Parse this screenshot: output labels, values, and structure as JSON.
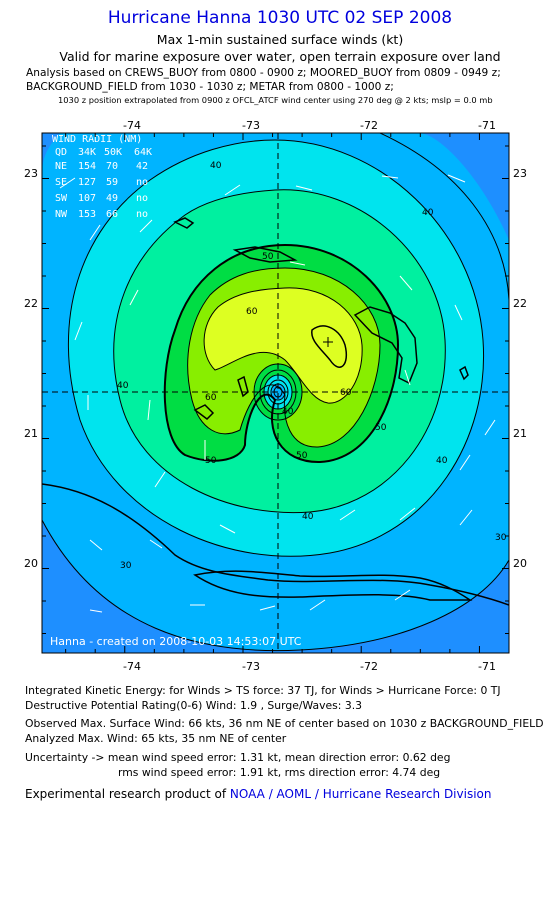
{
  "header": {
    "title": "Hurricane Hanna 1030 UTC 02 SEP 2008",
    "subtitle1": "Max 1-min sustained surface winds (kt)",
    "subtitle2": "Valid for marine exposure over water, open terrain exposure over land",
    "analysis_line1": "Analysis based on  CREWS_BUOY from 0800 - 0900 z;  MOORED_BUOY from 0809 - 0949 z;",
    "analysis_line2": "BACKGROUND_FIELD from 1030 - 1030 z;  METAR from 0800 - 1000 z;",
    "position_note": "1030 z position extrapolated from 0900 z OFCL_ATCF wind center using 270 deg @ 2 kts; mslp = 0.0 mb"
  },
  "map": {
    "lon_ticks": [
      "-74",
      "-73",
      "-72",
      "-71"
    ],
    "lat_ticks": [
      "23",
      "22",
      "21",
      "20"
    ],
    "lon_range": [
      -74.7,
      -70.75
    ],
    "lat_range": [
      19.35,
      23.35
    ],
    "center": {
      "lon": -72.72,
      "lat": 21.3
    },
    "max_wind_marker": {
      "lon": -72.3,
      "lat": 21.7
    },
    "contour_labels": [
      "40",
      "40",
      "40",
      "40",
      "40",
      "30",
      "30",
      "50",
      "50",
      "50",
      "60",
      "60",
      "60",
      "40",
      "50"
    ],
    "wind_radii": {
      "heading": "WIND RADII (NM)",
      "header_row": [
        "QD",
        "34K",
        "50K",
        "64K"
      ],
      "rows": [
        [
          "NE",
          "154",
          "70",
          "42"
        ],
        [
          "SE",
          "127",
          "59",
          "no"
        ],
        [
          "SW",
          "107",
          "49",
          "no"
        ],
        [
          "NW",
          "153",
          "66",
          "no"
        ]
      ]
    },
    "credit": "Hanna - created on 2008-10-03 14:53:07 UTC",
    "colors": {
      "lt30": "#1e8fff",
      "c30": "#00b4ff",
      "c40": "#00e4ee",
      "c50": "#00f0a0",
      "c64": "#00dd44",
      "c70": "#88ee00",
      "c80": "#ddff22",
      "land": "#000000"
    }
  },
  "footer": {
    "ike": "Integrated Kinetic Energy:  for Winds > TS force: 37 TJ,  for Winds > Hurricane Force: 0 TJ",
    "dpr": "Destructive Potential Rating(0-6)   Wind: 1.9 , Surge/Waves: 3.3",
    "observed": "Observed Max. Surface Wind: 66 kts, 36 nm NE of center based on 1030 z BACKGROUND_FIELD",
    "analyzed": "Analyzed Max. Wind: 65 kts, 35 nm NE of center",
    "uncert1": "Uncertainty -> mean wind speed error: 1.31 kt,   mean direction error: 0.62 deg",
    "uncert2": "rms wind speed error: 1.91 kt,   rms direction error: 4.74 deg",
    "product_prefix": "Experimental research product of ",
    "product_link": "NOAA / AOML / Hurricane Research Division"
  }
}
